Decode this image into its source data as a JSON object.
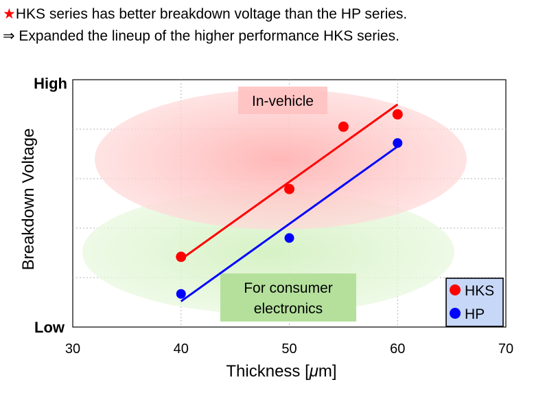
{
  "headline": {
    "star": "★",
    "line1": "HKS series has better breakdown voltage than the HP series.",
    "line2": "⇒ Expanded the lineup of the higher performance HKS series."
  },
  "chart_data": {
    "type": "scatter",
    "xlabel_prefix": "Thickness [",
    "xlabel_unit_italic": "μ",
    "xlabel_suffix": "m]",
    "ylabel": "Breakdown Voltage",
    "y_top_label": "High",
    "y_bottom_label": "Low",
    "xlim": [
      30,
      70
    ],
    "ylim": [
      0,
      5
    ],
    "x_ticks": [
      "30",
      "40",
      "50",
      "60",
      "70"
    ],
    "grid": true,
    "legend_position": "bottom-right",
    "series": [
      {
        "name": "HKS",
        "color": "#ff0000",
        "points": [
          {
            "x": 40,
            "y": 1.42
          },
          {
            "x": 50,
            "y": 2.79
          },
          {
            "x": 55,
            "y": 4.05
          },
          {
            "x": 60,
            "y": 4.3
          }
        ],
        "trend": [
          {
            "x": 40,
            "y": 1.37
          },
          {
            "x": 60,
            "y": 4.5
          }
        ]
      },
      {
        "name": "HP",
        "color": "#0000ff",
        "points": [
          {
            "x": 40,
            "y": 0.67
          },
          {
            "x": 50,
            "y": 1.8
          },
          {
            "x": 60,
            "y": 3.72
          }
        ],
        "trend": [
          {
            "x": 40,
            "y": 0.52
          },
          {
            "x": 60,
            "y": 3.65
          }
        ]
      }
    ],
    "regions": [
      {
        "label": "In-vehicle",
        "color": "#ffb3b3"
      },
      {
        "label_lines": [
          "For consumer",
          "electronics"
        ],
        "color": "#c8eeb2"
      }
    ]
  },
  "colors": {
    "region_red": "#ffc4c4",
    "region_green": "#d6f2c6",
    "invehicle_box": "#ffc0c0",
    "consumer_box": "#b4e09c",
    "legend_bg": "#c7d7f7",
    "grid": "#b0b0b0"
  }
}
